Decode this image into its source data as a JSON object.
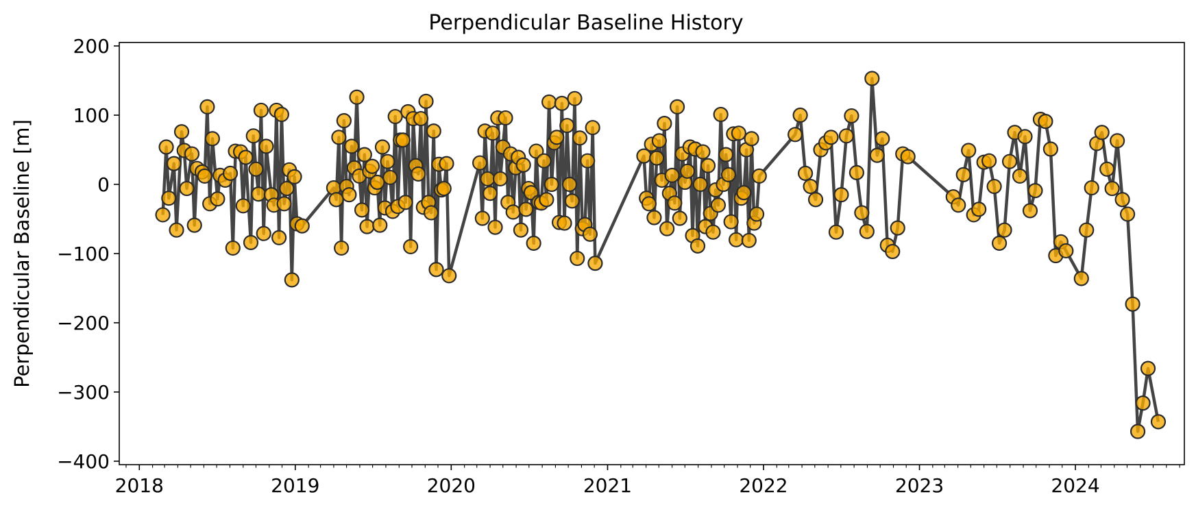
{
  "colors": {
    "line": "#3a3a3a",
    "marker_fill": "#f7a900",
    "marker_edge": "#2b2b2b",
    "axis": "#000000",
    "background": "#ffffff"
  },
  "chart_data": {
    "type": "line",
    "title": "Perpendicular Baseline History",
    "xlabel": "",
    "ylabel": "Perpendicular Baseline [m]",
    "x_axis_type": "date",
    "xlim": [
      "2017-11-15",
      "2024-09-12"
    ],
    "ylim": [
      -405,
      205
    ],
    "grid": false,
    "legend": "none",
    "marker": "circle",
    "x_ticks": [
      "2018",
      "2019",
      "2020",
      "2021",
      "2022",
      "2023",
      "2024"
    ],
    "y_ticks": [
      "200",
      "100",
      "0",
      "−100",
      "−200",
      "−300",
      "−400"
    ],
    "y_tick_values": [
      200,
      100,
      0,
      -100,
      -200,
      -300,
      -400
    ],
    "series": [
      {
        "points": [
          [
            "2018-02-25",
            -44
          ],
          [
            "2018-03-05",
            54
          ],
          [
            "2018-03-11",
            -20
          ],
          [
            "2018-03-23",
            30
          ],
          [
            "2018-03-29",
            -66
          ],
          [
            "2018-04-10",
            76
          ],
          [
            "2018-04-16",
            49
          ],
          [
            "2018-04-22",
            -6
          ],
          [
            "2018-05-04",
            44
          ],
          [
            "2018-05-10",
            -59
          ],
          [
            "2018-05-16",
            23
          ],
          [
            "2018-05-28",
            18
          ],
          [
            "2018-06-03",
            12
          ],
          [
            "2018-06-09",
            112
          ],
          [
            "2018-06-15",
            -28
          ],
          [
            "2018-06-21",
            66
          ],
          [
            "2018-07-03",
            -21
          ],
          [
            "2018-07-09",
            13
          ],
          [
            "2018-07-21",
            6
          ],
          [
            "2018-08-02",
            16
          ],
          [
            "2018-08-08",
            -92
          ],
          [
            "2018-08-14",
            48
          ],
          [
            "2018-08-26",
            47
          ],
          [
            "2018-09-01",
            -31
          ],
          [
            "2018-09-07",
            39
          ],
          [
            "2018-09-19",
            -84
          ],
          [
            "2018-09-25",
            70
          ],
          [
            "2018-10-01",
            22
          ],
          [
            "2018-10-07",
            -14
          ],
          [
            "2018-10-13",
            107
          ],
          [
            "2018-10-19",
            -71
          ],
          [
            "2018-10-25",
            55
          ],
          [
            "2018-11-06",
            -15
          ],
          [
            "2018-11-12",
            -30
          ],
          [
            "2018-11-18",
            107
          ],
          [
            "2018-11-24",
            -77
          ],
          [
            "2018-11-30",
            101
          ],
          [
            "2018-12-06",
            -28
          ],
          [
            "2018-12-12",
            -6
          ],
          [
            "2018-12-18",
            21
          ],
          [
            "2018-12-24",
            -138
          ],
          [
            "2018-12-30",
            11
          ],
          [
            "2019-01-05",
            -57
          ],
          [
            "2019-01-17",
            -60
          ],
          [
            "2019-04-01",
            -5
          ],
          [
            "2019-04-07",
            -22
          ],
          [
            "2019-04-13",
            68
          ],
          [
            "2019-04-19",
            -92
          ],
          [
            "2019-04-25",
            92
          ],
          [
            "2019-05-01",
            -3
          ],
          [
            "2019-05-07",
            -15
          ],
          [
            "2019-05-13",
            55
          ],
          [
            "2019-05-19",
            24
          ],
          [
            "2019-05-25",
            126
          ],
          [
            "2019-05-31",
            12
          ],
          [
            "2019-06-06",
            -37
          ],
          [
            "2019-06-12",
            43
          ],
          [
            "2019-06-18",
            -61
          ],
          [
            "2019-06-24",
            19
          ],
          [
            "2019-06-30",
            26
          ],
          [
            "2019-07-06",
            -5
          ],
          [
            "2019-07-12",
            3
          ],
          [
            "2019-07-18",
            -59
          ],
          [
            "2019-07-24",
            54
          ],
          [
            "2019-07-30",
            -34
          ],
          [
            "2019-08-05",
            33
          ],
          [
            "2019-08-11",
            10
          ],
          [
            "2019-08-17",
            -39
          ],
          [
            "2019-08-23",
            98
          ],
          [
            "2019-08-29",
            -32
          ],
          [
            "2019-09-04",
            64
          ],
          [
            "2019-09-10",
            64
          ],
          [
            "2019-09-16",
            -26
          ],
          [
            "2019-09-22",
            105
          ],
          [
            "2019-09-28",
            -90
          ],
          [
            "2019-10-04",
            95
          ],
          [
            "2019-10-10",
            27
          ],
          [
            "2019-10-16",
            15
          ],
          [
            "2019-10-22",
            95
          ],
          [
            "2019-10-28",
            -33
          ],
          [
            "2019-11-03",
            120
          ],
          [
            "2019-11-09",
            -26
          ],
          [
            "2019-11-15",
            -41
          ],
          [
            "2019-11-21",
            77
          ],
          [
            "2019-11-27",
            -123
          ],
          [
            "2019-12-03",
            29
          ],
          [
            "2019-12-09",
            -8
          ],
          [
            "2019-12-15",
            -6
          ],
          [
            "2019-12-21",
            30
          ],
          [
            "2019-12-27",
            -132
          ],
          [
            "2020-03-08",
            31
          ],
          [
            "2020-03-14",
            -49
          ],
          [
            "2020-03-20",
            77
          ],
          [
            "2020-03-26",
            8
          ],
          [
            "2020-04-01",
            -13
          ],
          [
            "2020-04-07",
            74
          ],
          [
            "2020-04-13",
            -62
          ],
          [
            "2020-04-19",
            96
          ],
          [
            "2020-04-25",
            8
          ],
          [
            "2020-05-01",
            54
          ],
          [
            "2020-05-07",
            96
          ],
          [
            "2020-05-13",
            -26
          ],
          [
            "2020-05-19",
            44
          ],
          [
            "2020-05-25",
            -40
          ],
          [
            "2020-05-31",
            24
          ],
          [
            "2020-06-06",
            39
          ],
          [
            "2020-06-12",
            -66
          ],
          [
            "2020-06-18",
            28
          ],
          [
            "2020-06-24",
            -36
          ],
          [
            "2020-06-30",
            -6
          ],
          [
            "2020-07-06",
            -12
          ],
          [
            "2020-07-12",
            -85
          ],
          [
            "2020-07-18",
            48
          ],
          [
            "2020-07-24",
            -26
          ],
          [
            "2020-07-30",
            -27
          ],
          [
            "2020-08-05",
            34
          ],
          [
            "2020-08-11",
            -22
          ],
          [
            "2020-08-17",
            119
          ],
          [
            "2020-08-23",
            0
          ],
          [
            "2020-08-29",
            60
          ],
          [
            "2020-09-04",
            68
          ],
          [
            "2020-09-10",
            -55
          ],
          [
            "2020-09-16",
            117
          ],
          [
            "2020-09-22",
            -56
          ],
          [
            "2020-09-28",
            85
          ],
          [
            "2020-10-04",
            0
          ],
          [
            "2020-10-10",
            -24
          ],
          [
            "2020-10-16",
            124
          ],
          [
            "2020-10-22",
            -107
          ],
          [
            "2020-10-28",
            67
          ],
          [
            "2020-11-03",
            -64
          ],
          [
            "2020-11-09",
            -58
          ],
          [
            "2020-11-15",
            34
          ],
          [
            "2020-11-21",
            -72
          ],
          [
            "2020-11-27",
            82
          ],
          [
            "2020-12-03",
            -114
          ],
          [
            "2021-03-27",
            41
          ],
          [
            "2021-04-02",
            -20
          ],
          [
            "2021-04-08",
            -28
          ],
          [
            "2021-04-14",
            58
          ],
          [
            "2021-04-20",
            -48
          ],
          [
            "2021-04-26",
            38
          ],
          [
            "2021-05-02",
            63
          ],
          [
            "2021-05-08",
            6
          ],
          [
            "2021-05-14",
            88
          ],
          [
            "2021-05-20",
            -64
          ],
          [
            "2021-05-26",
            -13
          ],
          [
            "2021-06-01",
            13
          ],
          [
            "2021-06-07",
            -27
          ],
          [
            "2021-06-13",
            112
          ],
          [
            "2021-06-19",
            -49
          ],
          [
            "2021-06-25",
            44
          ],
          [
            "2021-07-01",
            3
          ],
          [
            "2021-07-07",
            19
          ],
          [
            "2021-07-13",
            54
          ],
          [
            "2021-07-19",
            -74
          ],
          [
            "2021-07-25",
            51
          ],
          [
            "2021-07-31",
            -89
          ],
          [
            "2021-08-06",
            0
          ],
          [
            "2021-08-12",
            47
          ],
          [
            "2021-08-18",
            -61
          ],
          [
            "2021-08-24",
            27
          ],
          [
            "2021-08-30",
            -42
          ],
          [
            "2021-09-05",
            -69
          ],
          [
            "2021-09-11",
            -8
          ],
          [
            "2021-09-17",
            -30
          ],
          [
            "2021-09-23",
            101
          ],
          [
            "2021-09-29",
            0
          ],
          [
            "2021-10-05",
            43
          ],
          [
            "2021-10-11",
            14
          ],
          [
            "2021-10-17",
            -54
          ],
          [
            "2021-10-23",
            73
          ],
          [
            "2021-10-29",
            -80
          ],
          [
            "2021-11-04",
            74
          ],
          [
            "2021-11-10",
            -20
          ],
          [
            "2021-11-16",
            -12
          ],
          [
            "2021-11-22",
            50
          ],
          [
            "2021-11-28",
            -81
          ],
          [
            "2021-12-04",
            66
          ],
          [
            "2021-12-10",
            -56
          ],
          [
            "2021-12-16",
            -43
          ],
          [
            "2021-12-22",
            12
          ],
          [
            "2022-03-16",
            72
          ],
          [
            "2022-03-28",
            100
          ],
          [
            "2022-04-09",
            16
          ],
          [
            "2022-04-21",
            -3
          ],
          [
            "2022-05-03",
            -22
          ],
          [
            "2022-05-15",
            50
          ],
          [
            "2022-05-27",
            60
          ],
          [
            "2022-06-08",
            68
          ],
          [
            "2022-06-20",
            -69
          ],
          [
            "2022-07-02",
            -15
          ],
          [
            "2022-07-14",
            70
          ],
          [
            "2022-07-26",
            99
          ],
          [
            "2022-08-07",
            17
          ],
          [
            "2022-08-19",
            -41
          ],
          [
            "2022-08-31",
            -68
          ],
          [
            "2022-09-12",
            153
          ],
          [
            "2022-09-24",
            42
          ],
          [
            "2022-10-06",
            66
          ],
          [
            "2022-10-18",
            -88
          ],
          [
            "2022-10-30",
            -97
          ],
          [
            "2022-11-11",
            -63
          ],
          [
            "2022-11-23",
            44
          ],
          [
            "2022-12-05",
            40
          ],
          [
            "2023-03-21",
            -18
          ],
          [
            "2023-04-02",
            -30
          ],
          [
            "2023-04-14",
            14
          ],
          [
            "2023-04-26",
            49
          ],
          [
            "2023-05-08",
            -44
          ],
          [
            "2023-05-20",
            -36
          ],
          [
            "2023-06-01",
            32
          ],
          [
            "2023-06-13",
            34
          ],
          [
            "2023-06-25",
            -3
          ],
          [
            "2023-07-07",
            -85
          ],
          [
            "2023-07-19",
            -66
          ],
          [
            "2023-07-31",
            33
          ],
          [
            "2023-08-12",
            75
          ],
          [
            "2023-08-24",
            12
          ],
          [
            "2023-09-05",
            69
          ],
          [
            "2023-09-17",
            -38
          ],
          [
            "2023-09-29",
            -9
          ],
          [
            "2023-10-11",
            94
          ],
          [
            "2023-10-23",
            91
          ],
          [
            "2023-11-04",
            51
          ],
          [
            "2023-11-16",
            -103
          ],
          [
            "2023-11-28",
            -83
          ],
          [
            "2023-12-10",
            -96
          ],
          [
            "2024-01-15",
            -136
          ],
          [
            "2024-01-27",
            -66
          ],
          [
            "2024-02-08",
            -5
          ],
          [
            "2024-02-20",
            59
          ],
          [
            "2024-03-03",
            75
          ],
          [
            "2024-03-15",
            22
          ],
          [
            "2024-03-27",
            -6
          ],
          [
            "2024-04-08",
            63
          ],
          [
            "2024-04-20",
            -22
          ],
          [
            "2024-05-02",
            -43
          ],
          [
            "2024-05-14",
            -173
          ],
          [
            "2024-05-26",
            -357
          ],
          [
            "2024-06-07",
            -316
          ],
          [
            "2024-06-19",
            -266
          ],
          [
            "2024-07-13",
            -343
          ]
        ]
      }
    ]
  }
}
